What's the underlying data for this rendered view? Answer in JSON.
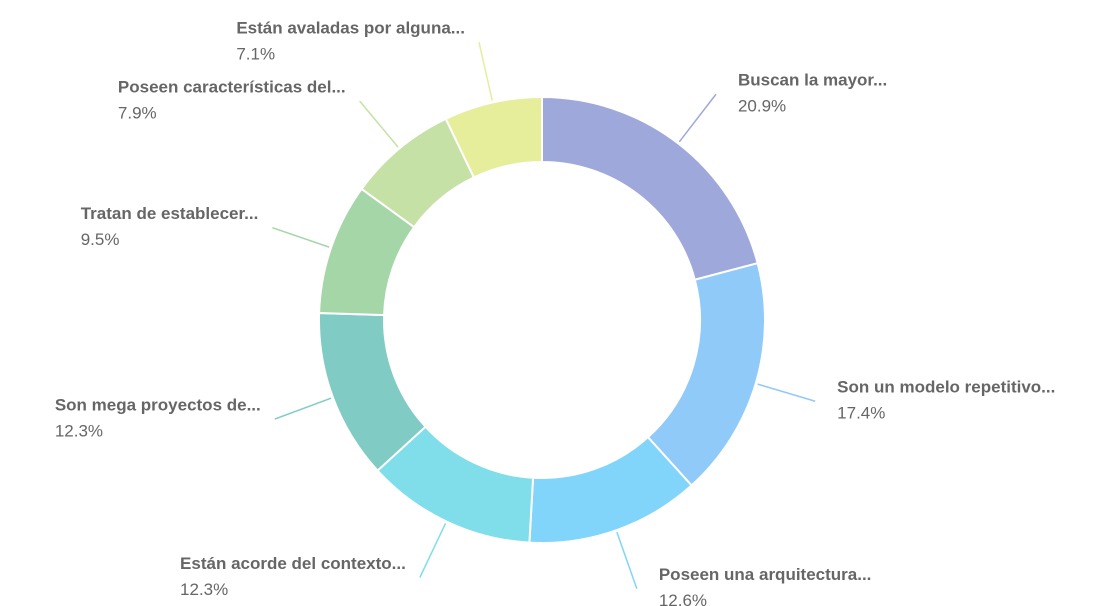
{
  "chart_data": {
    "type": "donut",
    "categories": [
      "Buscan la mayor...",
      "Son un modelo repetitivo...",
      "Poseen una arquitectura...",
      "Están acorde del contexto...",
      "Son mega proyectos de...",
      "Tratan de establecer...",
      "Poseen características del...",
      "Están avaladas por alguna..."
    ],
    "values": [
      20.9,
      17.4,
      12.6,
      12.3,
      12.3,
      9.5,
      7.9,
      7.1
    ],
    "value_labels": [
      "20.9%",
      "17.4%",
      "12.6%",
      "12.3%",
      "12.3%",
      "9.5%",
      "7.9%",
      "7.1%"
    ],
    "colors": [
      "#9fa8da",
      "#90caf9",
      "#81d4fa",
      "#80deea",
      "#80cbc4",
      "#a5d6a7",
      "#c5e1a5",
      "#e6ee9c"
    ]
  }
}
